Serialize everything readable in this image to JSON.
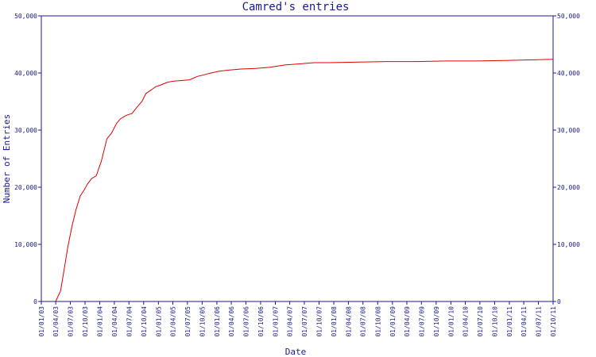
{
  "chart_data": {
    "type": "line",
    "title": "Camred's entries",
    "xlabel": "Date",
    "ylabel": "Number of Entries",
    "ylim": [
      0,
      50000
    ],
    "y_ticks": [
      "0",
      "10,000",
      "20,000",
      "30,000",
      "40,000",
      "50,000"
    ],
    "x_ticks": [
      "01/01/03",
      "01/04/03",
      "01/07/03",
      "01/10/03",
      "01/01/04",
      "01/04/04",
      "01/07/04",
      "01/10/04",
      "01/01/05",
      "01/04/05",
      "01/07/05",
      "01/10/05",
      "01/01/06",
      "01/04/06",
      "01/07/06",
      "01/10/06",
      "01/01/07",
      "01/04/07",
      "01/07/07",
      "01/10/07",
      "01/01/08",
      "01/04/08",
      "01/07/08",
      "01/10/08",
      "01/01/09",
      "01/04/09",
      "01/07/09",
      "01/10/09",
      "01/01/10",
      "01/04/10",
      "01/07/10",
      "01/10/10",
      "01/01/11",
      "01/04/11",
      "01/07/11",
      "01/10/11"
    ],
    "grid": false,
    "line_color": "#e00000",
    "axis_color": "#1a1a8c",
    "series": [
      {
        "x": [
          "2003-04-01",
          "2003-04-20",
          "2003-05-01",
          "2003-05-20",
          "2003-06-15",
          "2003-07-10",
          "2003-08-05",
          "2003-09-01",
          "2003-09-25",
          "2003-10-15",
          "2003-11-10",
          "2003-12-10",
          "2004-01-10",
          "2004-02-15",
          "2004-03-15",
          "2004-04-15",
          "2004-05-10",
          "2004-06-15",
          "2004-07-20",
          "2004-08-20",
          "2004-09-20",
          "2004-10-15",
          "2004-11-15",
          "2004-12-15",
          "2005-01-15",
          "2005-03-01",
          "2005-04-15",
          "2005-06-01",
          "2005-07-15",
          "2005-09-01",
          "2005-10-15",
          "2005-11-10",
          "2006-01-15",
          "2006-03-15",
          "2006-06-01",
          "2006-09-01",
          "2006-12-01",
          "2007-03-01",
          "2007-06-01",
          "2007-09-01",
          "2007-12-01",
          "2008-06-01",
          "2008-12-01",
          "2009-06-01",
          "2009-12-01",
          "2010-06-01",
          "2010-12-01",
          "2011-06-01",
          "2011-10-01"
        ],
        "y": [
          0,
          1200,
          1800,
          5000,
          9500,
          13000,
          16000,
          18500,
          19500,
          20500,
          21500,
          22000,
          24500,
          28500,
          29500,
          31200,
          32000,
          32600,
          32900,
          34000,
          35000,
          36400,
          37000,
          37600,
          37900,
          38400,
          38600,
          38700,
          38800,
          39400,
          39700,
          39900,
          40300,
          40500,
          40700,
          40800,
          41000,
          41400,
          41600,
          41800,
          41800,
          41900,
          42000,
          42000,
          42100,
          42100,
          42200,
          42300,
          42400
        ]
      }
    ]
  }
}
